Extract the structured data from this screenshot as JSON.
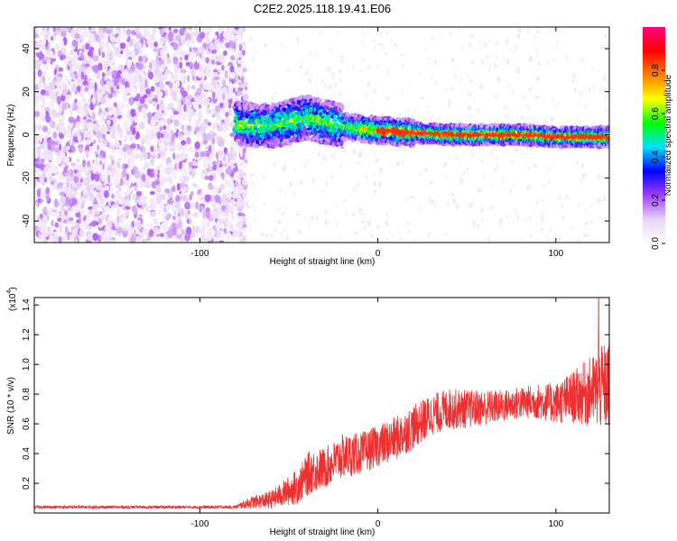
{
  "title": "C2E2.2025.118.19.41.E06",
  "chart_data": [
    {
      "type": "heatmap",
      "xlabel": "Height of straight line (km)",
      "ylabel": "Frequency (Hz)",
      "xlim": [
        -193,
        130
      ],
      "ylim": [
        -50,
        50
      ],
      "x_ticks": [
        -100,
        0,
        100
      ],
      "y_ticks": [
        -40,
        -20,
        0,
        20,
        40
      ],
      "colorbar": {
        "label": "Normalized spectral amplitude",
        "range": [
          0,
          1
        ],
        "ticks": [
          0.0,
          0.2,
          0.4,
          0.6,
          0.8
        ],
        "tick_labels": [
          "0.0",
          "0.2",
          "0.4",
          "0.6",
          "0.8"
        ],
        "colormap": [
          "#ffffff",
          "#e8d4f4",
          "#a040ff",
          "#0000ff",
          "#00e0ff",
          "#00ff00",
          "#ffff00",
          "#ff8000",
          "#ff0000",
          "#ff0080"
        ]
      },
      "regions": [
        {
          "x_range": [
            -193,
            -80
          ],
          "description": "broadband noise, amplitude 0.05-0.25 across all frequencies"
        },
        {
          "x_range": [
            -80,
            130
          ],
          "signal_frequency_hz": [
            5,
            4,
            8,
            6,
            4,
            2,
            1,
            0,
            0,
            0,
            -1,
            -1
          ],
          "signal_x_km": [
            -78,
            -60,
            -40,
            -30,
            -20,
            0,
            20,
            40,
            60,
            80,
            100,
            125
          ],
          "peak_amplitude": 0.85
        }
      ],
      "legend": "none",
      "grid": false
    },
    {
      "type": "line",
      "xlabel": "Height of straight line (km)",
      "ylabel": "SNR (10 * v/v)",
      "y_multiplier_label": "(x10",
      "y_multiplier_exp": "4",
      "y_multiplier_close": ")",
      "xlim": [
        -193,
        130
      ],
      "ylim": [
        0,
        1.45
      ],
      "x_ticks": [
        -100,
        0,
        100
      ],
      "y_ticks": [
        0.2,
        0.4,
        0.6,
        0.8,
        1.0,
        1.2,
        1.4
      ],
      "y_tick_labels": [
        "0.2",
        "0.4",
        "0.6",
        "0.8",
        "1.0",
        "1.2",
        "1.4"
      ],
      "series_color": "#f03030",
      "envelope": {
        "x": [
          -193,
          -80,
          -72,
          -60,
          -45,
          -38,
          -30,
          -20,
          -10,
          0,
          10,
          20,
          30,
          40,
          50,
          60,
          70,
          80,
          90,
          100,
          110,
          120,
          128
        ],
        "y_mean": [
          0.04,
          0.04,
          0.07,
          0.09,
          0.18,
          0.28,
          0.3,
          0.38,
          0.4,
          0.45,
          0.5,
          0.58,
          0.66,
          0.7,
          0.7,
          0.71,
          0.72,
          0.74,
          0.75,
          0.74,
          0.78,
          0.82,
          0.85
        ],
        "y_spread": [
          0.01,
          0.01,
          0.04,
          0.06,
          0.12,
          0.15,
          0.14,
          0.15,
          0.14,
          0.14,
          0.15,
          0.15,
          0.14,
          0.14,
          0.13,
          0.12,
          0.11,
          0.11,
          0.12,
          0.14,
          0.18,
          0.24,
          0.3
        ]
      },
      "max_point": {
        "x": 124,
        "y": 1.45
      },
      "legend": "none",
      "grid": false
    }
  ]
}
